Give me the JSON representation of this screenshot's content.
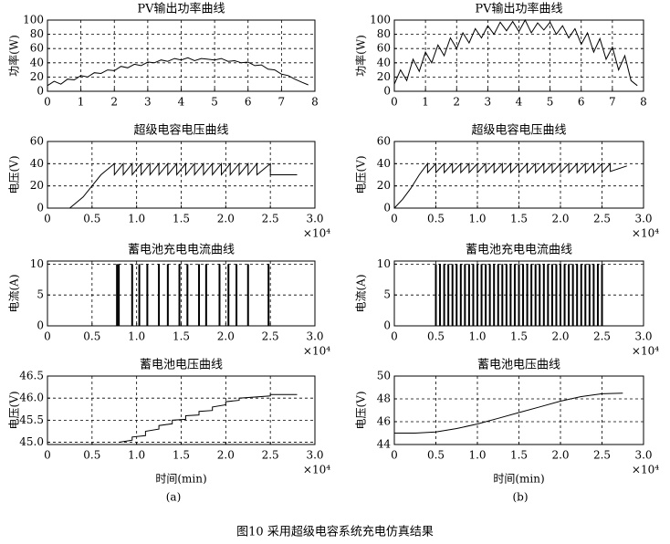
{
  "chart_data": [
    {
      "type": "line",
      "title": "PV输出功率曲线",
      "ylabel": "功率(W)",
      "color": "#000000",
      "grid": true,
      "xlim": [
        0,
        8
      ],
      "ylim": [
        0,
        100
      ],
      "xticks": [
        0,
        1,
        2,
        3,
        4,
        5,
        6,
        7,
        8
      ],
      "yticks": [
        0,
        20,
        40,
        60,
        80,
        100
      ],
      "x": [
        0,
        0.2,
        0.4,
        0.6,
        0.8,
        1,
        1.2,
        1.4,
        1.6,
        1.8,
        2,
        2.2,
        2.4,
        2.6,
        2.8,
        3,
        3.2,
        3.4,
        3.6,
        3.8,
        4,
        4.2,
        4.4,
        4.6,
        4.8,
        5,
        5.2,
        5.4,
        5.6,
        5.8,
        6,
        6.2,
        6.4,
        6.6,
        6.8,
        7,
        7.2,
        7.4,
        7.6,
        7.8
      ],
      "values": [
        8,
        14,
        10,
        17,
        16,
        22,
        20,
        26,
        25,
        30,
        29,
        35,
        33,
        38,
        36,
        41,
        40,
        44,
        42,
        46,
        44,
        47,
        43,
        46,
        45,
        44,
        46,
        42,
        43,
        40,
        41,
        36,
        37,
        31,
        30,
        24,
        22,
        17,
        13,
        9
      ]
    },
    {
      "type": "line",
      "title": "超级电容电压曲线",
      "ylabel": "电压(V)",
      "x_multiplier": "×10⁴",
      "color": "#000000",
      "grid": true,
      "xlim": [
        0,
        3
      ],
      "ylim": [
        0,
        60
      ],
      "xticks": [
        0,
        0.5,
        {
          "value": 1,
          "label": "1.0"
        },
        1.5,
        {
          "value": 2,
          "label": "2.0"
        },
        2.5,
        {
          "value": 3,
          "label": "3.0"
        }
      ],
      "yticks": [
        0,
        20,
        40,
        60
      ],
      "x": [
        0,
        0.25,
        0.4,
        0.5,
        0.6,
        0.75,
        0.75,
        0.85,
        0.85,
        0.95,
        0.95,
        1.05,
        1.05,
        1.15,
        1.15,
        1.25,
        1.25,
        1.35,
        1.35,
        1.45,
        1.45,
        1.55,
        1.55,
        1.65,
        1.65,
        1.75,
        1.75,
        1.85,
        1.85,
        1.95,
        1.95,
        2.05,
        2.05,
        2.15,
        2.15,
        2.25,
        2.25,
        2.35,
        2.35,
        2.5,
        2.5,
        2.8
      ],
      "values": [
        0,
        0,
        10,
        20,
        30,
        40,
        30,
        40,
        30,
        40,
        30,
        40,
        30,
        40,
        30,
        40,
        30,
        40,
        30,
        40,
        30,
        40,
        30,
        40,
        30,
        40,
        30,
        40,
        30,
        40,
        30,
        40,
        30,
        40,
        30,
        40,
        30,
        40,
        30,
        40,
        30,
        30
      ]
    },
    {
      "type": "bar",
      "title": "蓄电池充电电流曲线",
      "ylabel": "电流(A)",
      "x_multiplier": "×10⁴",
      "color": "#000000",
      "grid": true,
      "xlim": [
        0,
        3
      ],
      "ylim": [
        0,
        10.5
      ],
      "xticks": [
        0,
        0.5,
        {
          "value": 1,
          "label": "1.0"
        },
        1.5,
        {
          "value": 2,
          "label": "2.0"
        },
        2.5,
        {
          "value": 3,
          "label": "3.0"
        }
      ],
      "yticks": [
        0,
        5,
        10
      ],
      "x": [
        0.78,
        0.8,
        0.95,
        1.03,
        1.12,
        1.25,
        1.35,
        1.48,
        1.57,
        1.7,
        1.78,
        1.93,
        2.03,
        2.12,
        2.25,
        2.48
      ],
      "values": [
        10,
        10,
        10,
        10,
        10,
        10,
        10,
        10,
        10,
        10,
        10,
        10,
        10,
        10,
        10,
        10
      ]
    },
    {
      "type": "line",
      "title": "蓄电池电压曲线",
      "ylabel": "电压(V)",
      "xlabel": "时间(min)",
      "x_multiplier": "×10⁴",
      "color": "#000000",
      "grid": true,
      "xlim": [
        0,
        3
      ],
      "ylim": [
        44.95,
        46.5
      ],
      "xticks": [
        0,
        0.5,
        {
          "value": 1,
          "label": "1.0"
        },
        1.5,
        {
          "value": 2,
          "label": "2.0"
        },
        2.5,
        {
          "value": 3,
          "label": "3.0"
        }
      ],
      "yticks": [
        {
          "value": 45,
          "label": "45.0"
        },
        45.5,
        {
          "value": 46,
          "label": "46.0"
        },
        46.5
      ],
      "x": [
        0.8,
        0.95,
        0.95,
        1.1,
        1.1,
        1.25,
        1.25,
        1.4,
        1.4,
        1.55,
        1.55,
        1.7,
        1.7,
        1.85,
        1.85,
        2,
        2,
        2.15,
        2.15,
        2.5,
        2.5,
        2.8
      ],
      "values": [
        45,
        45.05,
        45.12,
        45.15,
        45.25,
        45.3,
        45.38,
        45.42,
        45.5,
        45.52,
        45.6,
        45.62,
        45.7,
        45.72,
        45.8,
        45.85,
        45.92,
        45.95,
        46,
        46.05,
        46.08,
        46.08
      ]
    },
    {
      "type": "line",
      "title": "PV输出功率曲线",
      "ylabel": "功率(W)",
      "color": "#000000",
      "grid": true,
      "xlim": [
        0,
        8
      ],
      "ylim": [
        0,
        100
      ],
      "xticks": [
        0,
        1,
        2,
        3,
        4,
        5,
        6,
        7,
        8
      ],
      "yticks": [
        0,
        20,
        40,
        60,
        80,
        100
      ],
      "x": [
        0,
        0.2,
        0.4,
        0.6,
        0.8,
        1,
        1.2,
        1.4,
        1.6,
        1.8,
        2,
        2.2,
        2.4,
        2.6,
        2.8,
        3,
        3.2,
        3.4,
        3.6,
        3.8,
        4,
        4.2,
        4.4,
        4.6,
        4.8,
        5,
        5.2,
        5.4,
        5.6,
        5.8,
        6,
        6.2,
        6.4,
        6.6,
        6.8,
        7,
        7.2,
        7.4,
        7.6,
        7.8
      ],
      "values": [
        10,
        30,
        15,
        45,
        28,
        55,
        40,
        65,
        50,
        75,
        60,
        82,
        68,
        88,
        75,
        92,
        80,
        97,
        85,
        98,
        84,
        100,
        82,
        96,
        86,
        97,
        80,
        92,
        75,
        88,
        66,
        82,
        55,
        74,
        45,
        62,
        30,
        50,
        15,
        8
      ]
    },
    {
      "type": "line",
      "title": "超级电容电压曲线",
      "ylabel": "电压(V)",
      "x_multiplier": "×10⁴",
      "color": "#000000",
      "grid": true,
      "xlim": [
        0,
        3
      ],
      "ylim": [
        0,
        60
      ],
      "xticks": [
        0,
        0.5,
        {
          "value": 1,
          "label": "1.0"
        },
        1.5,
        {
          "value": 2,
          "label": "2.0"
        },
        2.5,
        {
          "value": 3,
          "label": "3.0"
        }
      ],
      "yticks": [
        0,
        20,
        40,
        60
      ],
      "x": [
        0,
        0.1,
        0.2,
        0.3,
        0.4,
        0.4,
        0.5,
        0.5,
        0.6,
        0.6,
        0.7,
        0.7,
        0.8,
        0.8,
        0.9,
        0.9,
        1,
        1,
        1.1,
        1.1,
        1.2,
        1.2,
        1.3,
        1.3,
        1.4,
        1.4,
        1.5,
        1.5,
        1.6,
        1.6,
        1.7,
        1.7,
        1.8,
        1.8,
        1.9,
        1.9,
        2,
        2,
        2.1,
        2.1,
        2.2,
        2.2,
        2.3,
        2.3,
        2.4,
        2.4,
        2.5,
        2.5,
        2.6,
        2.6,
        2.8
      ],
      "values": [
        0,
        8,
        18,
        30,
        40,
        32,
        40,
        32,
        40,
        32,
        40,
        32,
        40,
        32,
        40,
        32,
        40,
        32,
        40,
        32,
        40,
        32,
        40,
        32,
        40,
        32,
        40,
        32,
        40,
        32,
        40,
        32,
        40,
        32,
        40,
        32,
        40,
        32,
        40,
        32,
        40,
        32,
        40,
        32,
        40,
        32,
        40,
        32,
        40,
        33,
        38
      ]
    },
    {
      "type": "bar",
      "title": "蓄电池充电电流曲线",
      "ylabel": "电流(A)",
      "x_multiplier": "×10⁴",
      "color": "#000000",
      "grid": true,
      "xlim": [
        0,
        3
      ],
      "ylim": [
        0,
        10.5
      ],
      "xticks": [
        0,
        0.5,
        {
          "value": 1,
          "label": "1.0"
        },
        1.5,
        {
          "value": 2,
          "label": "2.0"
        },
        2.5,
        {
          "value": 3,
          "label": "3.0"
        }
      ],
      "yticks": [
        0,
        5,
        10
      ],
      "x": [
        0.5,
        0.55,
        0.6,
        0.65,
        0.7,
        0.75,
        0.8,
        0.85,
        0.9,
        0.95,
        1,
        1.05,
        1.1,
        1.15,
        1.2,
        1.25,
        1.3,
        1.35,
        1.4,
        1.45,
        1.5,
        1.55,
        1.6,
        1.65,
        1.7,
        1.75,
        1.8,
        1.85,
        1.9,
        1.95,
        2,
        2.05,
        2.1,
        2.15,
        2.2,
        2.25,
        2.3,
        2.35,
        2.4,
        2.45,
        2.5
      ],
      "values": [
        10,
        10,
        10,
        10,
        10,
        10,
        10,
        10,
        10,
        10,
        10,
        10,
        10,
        10,
        10,
        10,
        10,
        10,
        10,
        10,
        10,
        10,
        10,
        10,
        10,
        10,
        10,
        10,
        10,
        10,
        10,
        10,
        10,
        10,
        10,
        10,
        10,
        10,
        10,
        10,
        10
      ]
    },
    {
      "type": "line",
      "title": "蓄电池电压曲线",
      "ylabel": "电压(V)",
      "xlabel": "时间(min)",
      "x_multiplier": "×10⁴",
      "color": "#000000",
      "grid": true,
      "xlim": [
        0,
        3
      ],
      "ylim": [
        44,
        50
      ],
      "xticks": [
        0,
        0.5,
        {
          "value": 1,
          "label": "1.0"
        },
        1.5,
        {
          "value": 2,
          "label": "2.0"
        },
        2.5,
        {
          "value": 3,
          "label": "3.0"
        }
      ],
      "yticks": [
        44,
        46,
        48,
        50
      ],
      "x": [
        0,
        0.25,
        0.5,
        0.75,
        1,
        1.25,
        1.5,
        1.75,
        2,
        2.25,
        2.5,
        2.75
      ],
      "values": [
        45,
        45,
        45.1,
        45.4,
        45.8,
        46.3,
        46.8,
        47.3,
        47.8,
        48.2,
        48.45,
        48.5
      ]
    }
  ],
  "panel_labels": [
    "(a)",
    "(b)"
  ],
  "caption": "图10   采用超级电容系统充电仿真结果"
}
